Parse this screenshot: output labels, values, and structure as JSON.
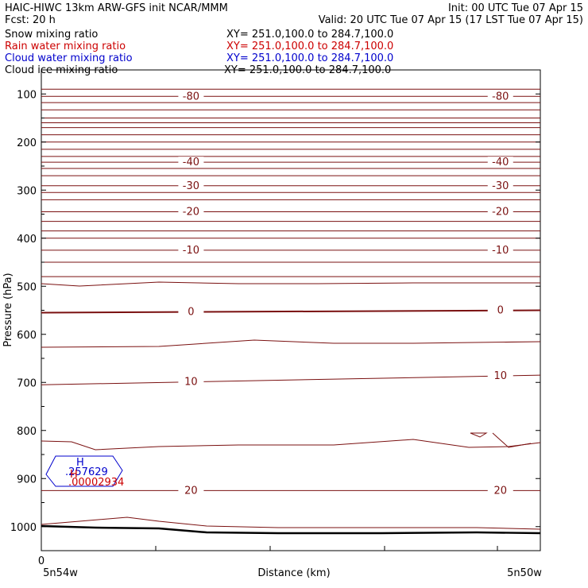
{
  "header": {
    "line1_left": "HAIC-HIWC 13km ARW-GFS init     NCAR/MMM",
    "line1_right": "Init: 00 UTC Tue 07 Apr 15",
    "line2_left": "Fcst:    20 h",
    "line2_right": "Valid: 20 UTC Tue 07 Apr 15 (17 LST Tue 07 Apr 15)"
  },
  "fields": [
    {
      "name": "Snow mixing ratio",
      "xy": "XY=  251.0,100.0  to  284.7,100.0",
      "color": "#000000"
    },
    {
      "name": "Rain water mixing ratio",
      "xy": "XY=  251.0,100.0  to  284.7,100.0",
      "color": "#cc0000"
    },
    {
      "name": "Cloud water mixing ratio",
      "xy": "XY=  251.0,100.0  to  284.7,100.0",
      "color": "#0000cc"
    },
    {
      "name": "Cloud ice mixing ratio",
      "xy": "XY=  251.0,100.0  to  284.7,100.0",
      "color": "#000000"
    }
  ],
  "colors": {
    "temperature": "#7a1010",
    "cloud_water": "#0000cc",
    "rain_water": "#cc0000",
    "surface": "#000000"
  },
  "chart_data": {
    "type": "line",
    "xlabel": "Distance (km)",
    "ylabel": "Pressure (hPa)",
    "x_tick_labels": [
      "0"
    ],
    "x_end_labels": [
      "5n54w",
      "5n50w"
    ],
    "ylim": [
      1050,
      50
    ],
    "y_ticks": [
      100,
      200,
      300,
      400,
      500,
      600,
      700,
      800,
      900,
      1000
    ],
    "isotherms": [
      {
        "value": -80,
        "label": "-80",
        "p": [
          105,
          105
        ]
      },
      {
        "value": -40,
        "label": "-40",
        "p": [
          242,
          242
        ]
      },
      {
        "value": -30,
        "label": "-30",
        "p": [
          291,
          291
        ]
      },
      {
        "value": -20,
        "label": "-20",
        "p": [
          345,
          345
        ]
      },
      {
        "value": -10,
        "label": "-10",
        "p": [
          425,
          425
        ]
      },
      {
        "value": 0,
        "label": "0",
        "p": [
          555,
          550
        ]
      },
      {
        "value": 10,
        "label": "10",
        "p": [
          705,
          685
        ]
      },
      {
        "value": 20,
        "label": "20",
        "p": [
          925,
          925
        ]
      }
    ],
    "cloud_water_max": {
      "marker": "H",
      "value": ".257629"
    },
    "rain_water_max": {
      "marker": "H",
      "value": ".00002934"
    }
  }
}
